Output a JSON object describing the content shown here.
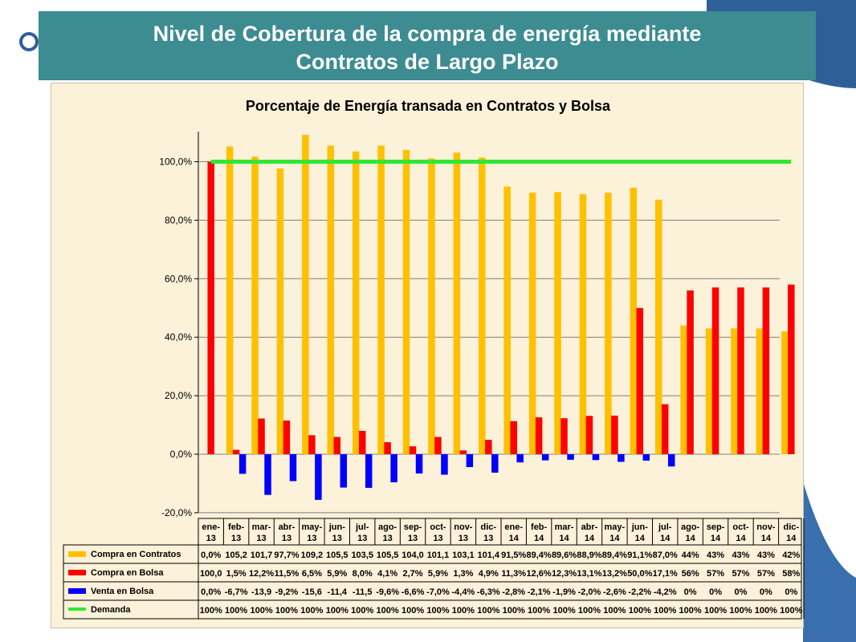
{
  "slide": {
    "title_line1": "Nivel de Cobertura de la compra de energía mediante",
    "title_line2": "Contratos de Largo Plazo"
  },
  "colors": {
    "header_bg": "#3c8c92",
    "panel_bg": "#fcf1d9",
    "contratos": "#ffc000",
    "bolsa": "#ff0000",
    "venta": "#0000ff",
    "demanda": "#33e633"
  },
  "chart_data": {
    "type": "bar",
    "title": "Porcentaje de Energía transada en Contratos y Bolsa",
    "xlabel": "",
    "ylabel": "",
    "ylim": [
      -20,
      110
    ],
    "yticks": [
      "-20,0%",
      "0,0%",
      "20,0%",
      "40,0%",
      "60,0%",
      "80,0%",
      "100,0%"
    ],
    "ytick_values": [
      -20,
      0,
      20,
      40,
      60,
      80,
      100
    ],
    "grid": true,
    "legend": "table-left",
    "categories": [
      [
        "ene-",
        "13"
      ],
      [
        "feb-",
        "13"
      ],
      [
        "mar-",
        "13"
      ],
      [
        "abr-",
        "13"
      ],
      [
        "may-",
        "13"
      ],
      [
        "jun-",
        "13"
      ],
      [
        "jul-",
        "13"
      ],
      [
        "ago-",
        "13"
      ],
      [
        "sep-",
        "13"
      ],
      [
        "oct-",
        "13"
      ],
      [
        "nov-",
        "13"
      ],
      [
        "dic-",
        "13"
      ],
      [
        "ene-",
        "14"
      ],
      [
        "feb-",
        "14"
      ],
      [
        "mar-",
        "14"
      ],
      [
        "abr-",
        "14"
      ],
      [
        "may-",
        "14"
      ],
      [
        "jun-",
        "14"
      ],
      [
        "jul-",
        "14"
      ],
      [
        "ago-",
        "14"
      ],
      [
        "sep-",
        "14"
      ],
      [
        "oct-",
        "14"
      ],
      [
        "nov-",
        "14"
      ],
      [
        "dic-",
        "14"
      ]
    ],
    "series": [
      {
        "name": "Compra en Contratos",
        "kind": "bar",
        "color": "#ffc000",
        "values": [
          0,
          105.2,
          101.7,
          97.7,
          109.2,
          105.5,
          103.5,
          105.5,
          104.0,
          101.1,
          103.1,
          101.4,
          91.5,
          89.4,
          89.6,
          88.9,
          89.4,
          91.1,
          87.0,
          44,
          43,
          43,
          43,
          42
        ],
        "labels": [
          "0,0%",
          "105,2",
          "101,7",
          "97,7%",
          "109,2",
          "105,5",
          "103,5",
          "105,5",
          "104,0",
          "101,1",
          "103,1",
          "101,4",
          "91,5%",
          "89,4%",
          "89,6%",
          "88,9%",
          "89,4%",
          "91,1%",
          "87,0%",
          "44%",
          "43%",
          "43%",
          "43%",
          "42%"
        ]
      },
      {
        "name": "Compra en Bolsa",
        "kind": "bar",
        "color": "#ff0000",
        "values": [
          100.0,
          1.5,
          12.2,
          11.5,
          6.5,
          5.9,
          8.0,
          4.1,
          2.7,
          5.9,
          1.3,
          4.9,
          11.3,
          12.6,
          12.3,
          13.1,
          13.2,
          50.0,
          17.1,
          56,
          57,
          57,
          57,
          58
        ],
        "labels": [
          "100,0",
          "1,5%",
          "12,2%",
          "11,5%",
          "6,5%",
          "5,9%",
          "8,0%",
          "4,1%",
          "2,7%",
          "5,9%",
          "1,3%",
          "4,9%",
          "11,3%",
          "12,6%",
          "12,3%",
          "13,1%",
          "13,2%",
          "50,0%",
          "17,1%",
          "56%",
          "57%",
          "57%",
          "57%",
          "58%"
        ]
      },
      {
        "name": "Venta en Bolsa",
        "kind": "bar",
        "color": "#0000ff",
        "values": [
          0,
          -6.7,
          -13.9,
          -9.2,
          -15.6,
          -11.4,
          -11.5,
          -9.6,
          -6.6,
          -7.0,
          -4.4,
          -6.3,
          -2.8,
          -2.1,
          -1.9,
          -2.0,
          -2.6,
          -2.2,
          -4.2,
          0,
          0,
          0,
          0,
          0
        ],
        "labels": [
          "0,0%",
          "-6,7%",
          "-13,9",
          "-9,2%",
          "-15,6",
          "-11,4",
          "-11,5",
          "-9,6%",
          "-6,6%",
          "-7,0%",
          "-4,4%",
          "-6,3%",
          "-2,8%",
          "-2,1%",
          "-1,9%",
          "-2,0%",
          "-2,6%",
          "-2,2%",
          "-4,2%",
          "0%",
          "0%",
          "0%",
          "0%",
          "0%"
        ]
      },
      {
        "name": "Demanda",
        "kind": "line",
        "color": "#33e633",
        "values": [
          100,
          100,
          100,
          100,
          100,
          100,
          100,
          100,
          100,
          100,
          100,
          100,
          100,
          100,
          100,
          100,
          100,
          100,
          100,
          100,
          100,
          100,
          100,
          100
        ],
        "labels": [
          "100%",
          "100%",
          "100%",
          "100%",
          "100%",
          "100%",
          "100%",
          "100%",
          "100%",
          "100%",
          "100%",
          "100%",
          "100%",
          "100%",
          "100%",
          "100%",
          "100%",
          "100%",
          "100%",
          "100%",
          "100%",
          "100%",
          "100%",
          "100%"
        ]
      }
    ]
  }
}
